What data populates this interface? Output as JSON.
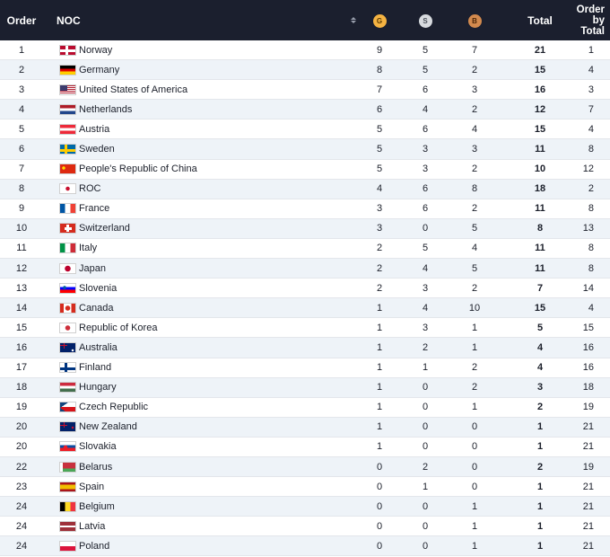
{
  "colors": {
    "header_bg": "#1b1f2e",
    "gold": "#f5b342",
    "silver": "#d7dade",
    "bronze": "#d38a4e"
  },
  "header": {
    "order": "Order",
    "noc": "NOC",
    "gold": "G",
    "silver": "S",
    "bronze": "B",
    "total": "Total",
    "order_by_total": [
      "Order",
      "by",
      "Total"
    ]
  },
  "rows": [
    {
      "order": "1",
      "noc": "Norway",
      "flag": "flag-norway",
      "g": "9",
      "s": "5",
      "b": "7",
      "total": "21",
      "rank_total": "1"
    },
    {
      "order": "2",
      "noc": "Germany",
      "flag": "flag-germany",
      "g": "8",
      "s": "5",
      "b": "2",
      "total": "15",
      "rank_total": "4"
    },
    {
      "order": "3",
      "noc": "United States of America",
      "flag": "flag-usa",
      "g": "7",
      "s": "6",
      "b": "3",
      "total": "16",
      "rank_total": "3"
    },
    {
      "order": "4",
      "noc": "Netherlands",
      "flag": "flag-netherlands",
      "g": "6",
      "s": "4",
      "b": "2",
      "total": "12",
      "rank_total": "7"
    },
    {
      "order": "5",
      "noc": "Austria",
      "flag": "flag-austria",
      "g": "5",
      "s": "6",
      "b": "4",
      "total": "15",
      "rank_total": "4"
    },
    {
      "order": "6",
      "noc": "Sweden",
      "flag": "flag-sweden",
      "g": "5",
      "s": "3",
      "b": "3",
      "total": "11",
      "rank_total": "8"
    },
    {
      "order": "7",
      "noc": "People's Republic of China",
      "flag": "flag-china",
      "g": "5",
      "s": "3",
      "b": "2",
      "total": "10",
      "rank_total": "12"
    },
    {
      "order": "8",
      "noc": "ROC",
      "flag": "flag-roc",
      "g": "4",
      "s": "6",
      "b": "8",
      "total": "18",
      "rank_total": "2"
    },
    {
      "order": "9",
      "noc": "France",
      "flag": "flag-france",
      "g": "3",
      "s": "6",
      "b": "2",
      "total": "11",
      "rank_total": "8"
    },
    {
      "order": "10",
      "noc": "Switzerland",
      "flag": "flag-switzerland",
      "g": "3",
      "s": "0",
      "b": "5",
      "total": "8",
      "rank_total": "13"
    },
    {
      "order": "11",
      "noc": "Italy",
      "flag": "flag-italy",
      "g": "2",
      "s": "5",
      "b": "4",
      "total": "11",
      "rank_total": "8"
    },
    {
      "order": "12",
      "noc": "Japan",
      "flag": "flag-japan",
      "g": "2",
      "s": "4",
      "b": "5",
      "total": "11",
      "rank_total": "8"
    },
    {
      "order": "13",
      "noc": "Slovenia",
      "flag": "flag-slovenia",
      "g": "2",
      "s": "3",
      "b": "2",
      "total": "7",
      "rank_total": "14"
    },
    {
      "order": "14",
      "noc": "Canada",
      "flag": "flag-canada",
      "g": "1",
      "s": "4",
      "b": "10",
      "total": "15",
      "rank_total": "4"
    },
    {
      "order": "15",
      "noc": "Republic of Korea",
      "flag": "flag-korea",
      "g": "1",
      "s": "3",
      "b": "1",
      "total": "5",
      "rank_total": "15"
    },
    {
      "order": "16",
      "noc": "Australia",
      "flag": "flag-australia",
      "g": "1",
      "s": "2",
      "b": "1",
      "total": "4",
      "rank_total": "16"
    },
    {
      "order": "17",
      "noc": "Finland",
      "flag": "flag-finland",
      "g": "1",
      "s": "1",
      "b": "2",
      "total": "4",
      "rank_total": "16"
    },
    {
      "order": "18",
      "noc": "Hungary",
      "flag": "flag-hungary",
      "g": "1",
      "s": "0",
      "b": "2",
      "total": "3",
      "rank_total": "18"
    },
    {
      "order": "19",
      "noc": "Czech Republic",
      "flag": "flag-czech",
      "g": "1",
      "s": "0",
      "b": "1",
      "total": "2",
      "rank_total": "19"
    },
    {
      "order": "20",
      "noc": "New Zealand",
      "flag": "flag-new-zealand",
      "g": "1",
      "s": "0",
      "b": "0",
      "total": "1",
      "rank_total": "21"
    },
    {
      "order": "20",
      "noc": "Slovakia",
      "flag": "flag-slovakia",
      "g": "1",
      "s": "0",
      "b": "0",
      "total": "1",
      "rank_total": "21"
    },
    {
      "order": "22",
      "noc": "Belarus",
      "flag": "flag-belarus",
      "g": "0",
      "s": "2",
      "b": "0",
      "total": "2",
      "rank_total": "19"
    },
    {
      "order": "23",
      "noc": "Spain",
      "flag": "flag-spain",
      "g": "0",
      "s": "1",
      "b": "0",
      "total": "1",
      "rank_total": "21"
    },
    {
      "order": "24",
      "noc": "Belgium",
      "flag": "flag-belgium",
      "g": "0",
      "s": "0",
      "b": "1",
      "total": "1",
      "rank_total": "21"
    },
    {
      "order": "24",
      "noc": "Latvia",
      "flag": "flag-latvia",
      "g": "0",
      "s": "0",
      "b": "1",
      "total": "1",
      "rank_total": "21"
    },
    {
      "order": "24",
      "noc": "Poland",
      "flag": "flag-poland",
      "g": "0",
      "s": "0",
      "b": "1",
      "total": "1",
      "rank_total": "21"
    }
  ]
}
